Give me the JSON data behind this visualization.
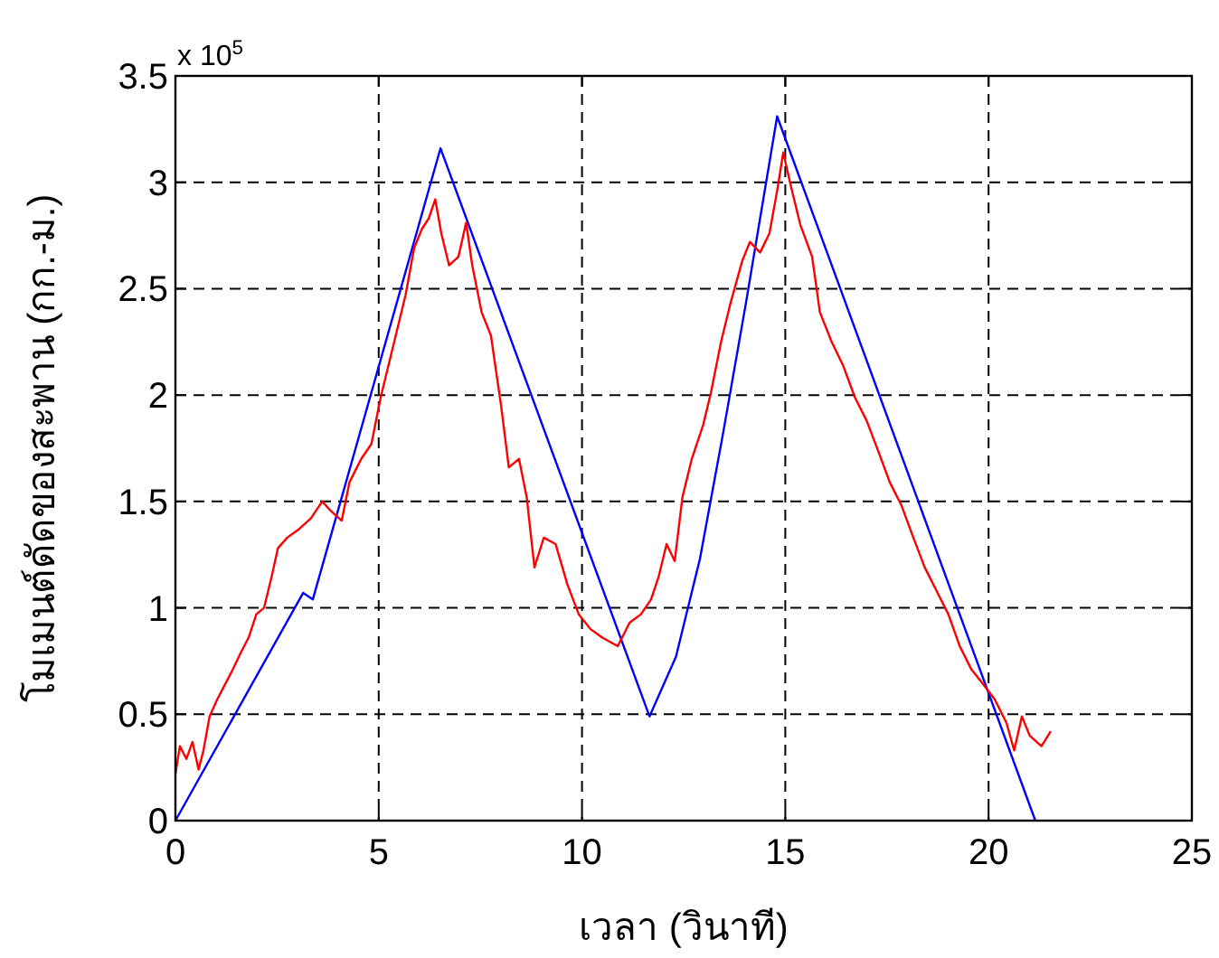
{
  "chart_data": {
    "type": "line",
    "xlabel": "เวลา (วินาที)",
    "ylabel": "โมเมนต์ดัดของสะพาน (กก.-ม.)",
    "annotations": [
      "x 10$^{5}$"
    ],
    "xlim": [
      0,
      25
    ],
    "ylim": [
      0,
      3.5
    ],
    "xticks": [
      0,
      5,
      10,
      15,
      20,
      25
    ],
    "yticks": [
      0,
      0.5,
      1,
      1.5,
      2,
      2.5,
      3,
      3.5
    ],
    "grid": true,
    "series": [
      {
        "color": "#0000ff",
        "x": [
          0,
          3.14,
          3.38,
          6.52,
          11.66,
          12.31,
          12.9,
          13.46,
          14.03,
          14.8,
          21.15
        ],
        "values": [
          0,
          1.07,
          1.04,
          3.16,
          0.49,
          0.77,
          1.23,
          1.81,
          2.43,
          3.31,
          0
        ]
      },
      {
        "color": "#ff0000",
        "x": [
          0,
          0.11,
          0.27,
          0.42,
          0.57,
          0.69,
          0.84,
          1.03,
          1.22,
          1.41,
          1.61,
          1.8,
          1.99,
          2.18,
          2.37,
          2.52,
          2.75,
          3.04,
          3.33,
          3.61,
          3.8,
          4.09,
          4.28,
          4.57,
          4.82,
          5.05,
          5.24,
          5.47,
          5.66,
          5.87,
          6.06,
          6.23,
          6.39,
          6.54,
          6.73,
          6.96,
          7.15,
          7.3,
          7.53,
          7.76,
          8.01,
          8.2,
          8.45,
          8.64,
          8.83,
          9.06,
          9.35,
          9.64,
          9.92,
          10.21,
          10.5,
          10.88,
          11.17,
          11.45,
          11.7,
          11.89,
          12.08,
          12.28,
          12.47,
          12.7,
          12.98,
          13.17,
          13.42,
          13.65,
          13.94,
          14.13,
          14.38,
          14.61,
          14.8,
          14.95,
          15.14,
          15.37,
          15.66,
          15.85,
          16.14,
          16.42,
          16.71,
          17,
          17.28,
          17.57,
          17.86,
          18.15,
          18.43,
          18.72,
          19.01,
          19.29,
          19.58,
          19.87,
          20.15,
          20.44,
          20.63,
          20.82,
          21.01,
          21.3,
          21.53
        ],
        "values": [
          0.22,
          0.35,
          0.29,
          0.37,
          0.24,
          0.33,
          0.49,
          0.57,
          0.64,
          0.71,
          0.79,
          0.86,
          0.97,
          1,
          1.15,
          1.28,
          1.33,
          1.37,
          1.42,
          1.5,
          1.46,
          1.41,
          1.59,
          1.7,
          1.77,
          1.99,
          2.14,
          2.32,
          2.47,
          2.69,
          2.78,
          2.83,
          2.92,
          2.76,
          2.61,
          2.65,
          2.81,
          2.61,
          2.39,
          2.28,
          1.95,
          1.66,
          1.7,
          1.52,
          1.19,
          1.33,
          1.3,
          1.11,
          0.97,
          0.9,
          0.86,
          0.82,
          0.93,
          0.97,
          1.04,
          1.15,
          1.3,
          1.22,
          1.52,
          1.7,
          1.86,
          2.01,
          2.25,
          2.43,
          2.63,
          2.72,
          2.67,
          2.76,
          2.96,
          3.14,
          2.98,
          2.8,
          2.65,
          2.39,
          2.25,
          2.14,
          1.99,
          1.88,
          1.74,
          1.59,
          1.48,
          1.33,
          1.19,
          1.08,
          0.97,
          0.82,
          0.71,
          0.64,
          0.57,
          0.46,
          0.33,
          0.49,
          0.4,
          0.35,
          0.42
        ]
      }
    ]
  }
}
